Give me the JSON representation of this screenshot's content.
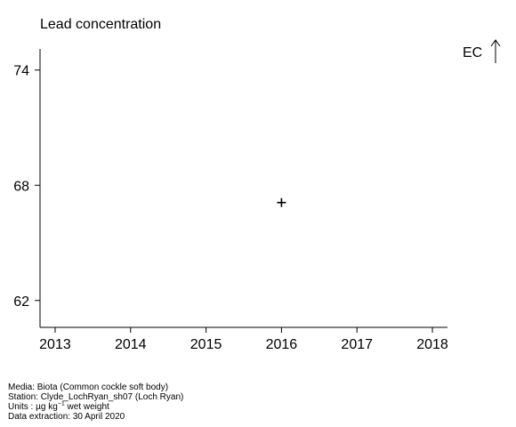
{
  "chart_data": {
    "type": "scatter",
    "title": "Lead concentration",
    "indicator": "EC",
    "x_ticks": [
      2013,
      2014,
      2015,
      2016,
      2017,
      2018
    ],
    "y_ticks": [
      62,
      68,
      74
    ],
    "xlim": [
      2012.8,
      2018.2
    ],
    "ylim": [
      60.6,
      75.1
    ],
    "points": [
      {
        "x": 2016,
        "y": 67.1,
        "marker": "+"
      }
    ]
  },
  "footer": {
    "media": "Media: Biota (Common cockle soft body)",
    "station": "Station: Clyde_LochRyan_sh07 (Loch Ryan)",
    "units_prefix": "Units :  µg kg",
    "units_sup": "−1",
    "units_suffix": " wet weight",
    "extraction": "Data extraction: 30 April 2020"
  }
}
